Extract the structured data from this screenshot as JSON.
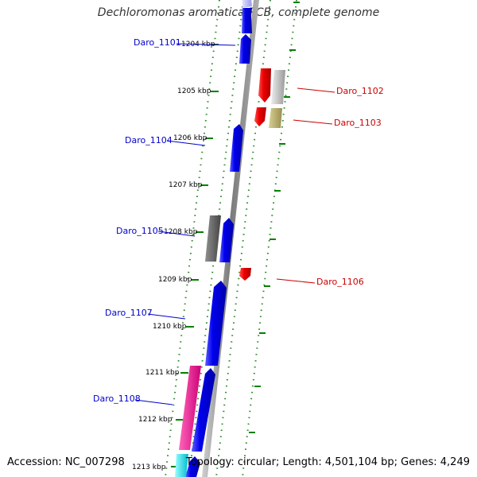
{
  "title": "Dechloromonas aromatica RCB, complete genome",
  "footer": {
    "accession": "Accession: NC_007298",
    "summary": "Topology: circular; Length: 4,501,104 bp; Genes: 4,249"
  },
  "colors": {
    "forward": "#0000ee",
    "reverse": "#ee0000",
    "left_label": "#0000cc",
    "right_label": "#cc0000",
    "tick": "#008000"
  },
  "scale": {
    "unit": "kbp",
    "labels": [
      "1204 kbp",
      "1205 kbp",
      "1206 kbp",
      "1207 kbp",
      "1208 kbp",
      "1209 kbp",
      "1210 kbp",
      "1211 kbp",
      "1212 kbp",
      "1213 kbp"
    ]
  },
  "gene_labels": {
    "left": [
      "Daro_1101",
      "Daro_1104",
      "Daro_1105",
      "Daro_1107",
      "Daro_1108"
    ],
    "right": [
      "Daro_1102",
      "Daro_1103",
      "Daro_1106"
    ]
  }
}
